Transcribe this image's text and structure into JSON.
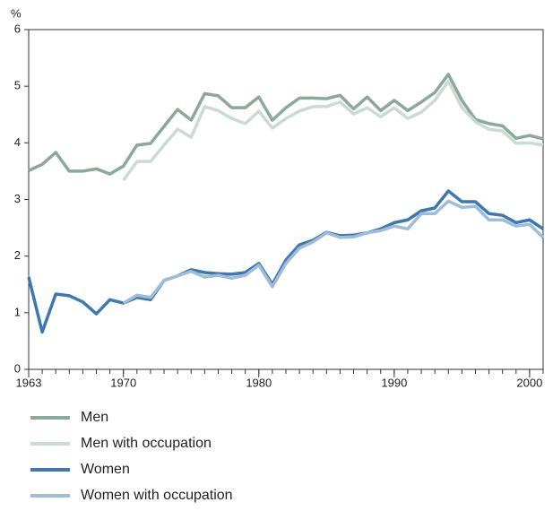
{
  "chart_data": {
    "type": "line",
    "y_label": "%",
    "x": [
      1963,
      1964,
      1965,
      1966,
      1967,
      1968,
      1969,
      1970,
      1971,
      1972,
      1973,
      1974,
      1975,
      1976,
      1977,
      1978,
      1979,
      1980,
      1981,
      1982,
      1983,
      1984,
      1985,
      1986,
      1987,
      1988,
      1989,
      1990,
      1991,
      1992,
      1993,
      1994,
      1995,
      1996,
      1997,
      1998,
      1999,
      2000,
      2001
    ],
    "xlim": [
      1963,
      2001
    ],
    "xticks": [
      1963,
      1970,
      1980,
      1990,
      2000
    ],
    "ylim": [
      0,
      6
    ],
    "yticks": [
      0,
      1,
      2,
      3,
      4,
      5,
      6
    ],
    "series": [
      {
        "name": "Men",
        "color": "#8aa99b",
        "values": [
          3.51,
          3.62,
          3.83,
          3.5,
          3.5,
          3.54,
          3.45,
          3.59,
          3.96,
          3.99,
          4.29,
          4.59,
          4.4,
          4.87,
          4.83,
          4.62,
          4.62,
          4.81,
          4.4,
          4.62,
          4.79,
          4.79,
          4.78,
          4.84,
          4.6,
          4.81,
          4.57,
          4.75,
          4.57,
          4.72,
          4.89,
          5.21,
          4.75,
          4.41,
          4.34,
          4.3,
          4.08,
          4.13,
          4.07
        ]
      },
      {
        "name": "Men with occupation",
        "color": "#cbdad3",
        "values": [
          null,
          null,
          null,
          null,
          null,
          null,
          null,
          3.34,
          3.67,
          3.67,
          3.96,
          4.24,
          4.1,
          4.64,
          4.57,
          4.43,
          4.34,
          4.56,
          4.26,
          4.43,
          4.56,
          4.64,
          4.64,
          4.72,
          4.51,
          4.62,
          4.46,
          4.62,
          4.43,
          4.54,
          4.75,
          5.09,
          4.62,
          4.37,
          4.24,
          4.21,
          3.99,
          4.0,
          3.96
        ]
      },
      {
        "name": "Women",
        "color": "#3d78b1",
        "values": [
          1.63,
          0.66,
          1.33,
          1.3,
          1.19,
          0.98,
          1.23,
          1.17,
          1.27,
          1.23,
          1.57,
          1.65,
          1.76,
          1.71,
          1.69,
          1.68,
          1.71,
          1.87,
          1.5,
          1.93,
          2.2,
          2.28,
          2.42,
          2.36,
          2.37,
          2.41,
          2.48,
          2.59,
          2.64,
          2.8,
          2.85,
          3.15,
          2.96,
          2.96,
          2.75,
          2.72,
          2.59,
          2.64,
          2.48
        ]
      },
      {
        "name": "Women with occupation",
        "color": "#9fbcd9",
        "values": [
          null,
          null,
          null,
          null,
          null,
          null,
          null,
          1.17,
          1.31,
          1.27,
          1.57,
          1.65,
          1.73,
          1.63,
          1.66,
          1.61,
          1.66,
          1.84,
          1.46,
          1.87,
          2.14,
          2.25,
          2.41,
          2.33,
          2.34,
          2.41,
          2.45,
          2.53,
          2.48,
          2.75,
          2.75,
          2.97,
          2.86,
          2.88,
          2.64,
          2.64,
          2.53,
          2.56,
          2.33
        ]
      }
    ]
  }
}
